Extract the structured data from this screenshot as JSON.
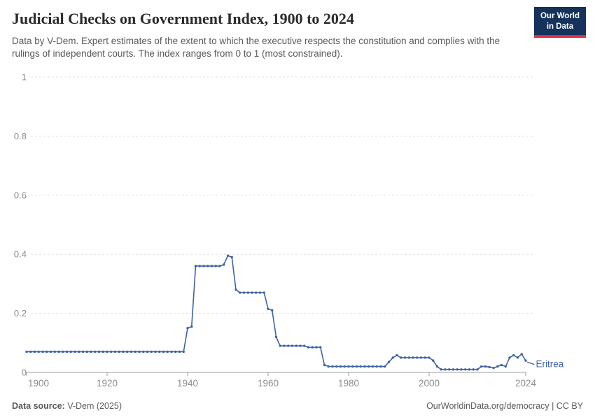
{
  "header": {
    "title": "Judicial Checks on Government Index, 1900 to 2024",
    "subtitle": "Data by V-Dem. Expert estimates of the extent to which the executive respects the constitution and complies with the rulings of independent courts. The index ranges from 0 to 1 (most constrained).",
    "logo": {
      "line1": "Our World",
      "line2": "in Data",
      "bg_color": "#14325c",
      "bar_color": "#dc2e41"
    }
  },
  "chart_data": {
    "type": "line",
    "title": "Judicial Checks on Government Index, 1900 to 2024",
    "entity_label": "Eritrea",
    "x_start": 1900,
    "x_end": 2024,
    "xlim": [
      1900,
      2024
    ],
    "ylim": [
      0,
      1
    ],
    "xticks": [
      1900,
      1920,
      1940,
      1960,
      1980,
      2000,
      2024
    ],
    "yticks": [
      0,
      0.2,
      0.4,
      0.6,
      0.8,
      1
    ],
    "grid": "horizontal-dashed",
    "legend_position": "line-end-label",
    "line_color": "#3f62a7",
    "grid_color": "#e0e0e0",
    "axis_color": "#9e9e9e",
    "tick_label_color": "#8c8c8c",
    "series": [
      {
        "name": "Eritrea",
        "color": "#3f62a7",
        "values": [
          0.07,
          0.07,
          0.07,
          0.07,
          0.07,
          0.07,
          0.07,
          0.07,
          0.07,
          0.07,
          0.07,
          0.07,
          0.07,
          0.07,
          0.07,
          0.07,
          0.07,
          0.07,
          0.07,
          0.07,
          0.07,
          0.07,
          0.07,
          0.07,
          0.07,
          0.07,
          0.07,
          0.07,
          0.07,
          0.07,
          0.07,
          0.07,
          0.07,
          0.07,
          0.07,
          0.07,
          0.07,
          0.07,
          0.07,
          0.07,
          0.15,
          0.155,
          0.36,
          0.36,
          0.36,
          0.36,
          0.36,
          0.36,
          0.36,
          0.365,
          0.395,
          0.39,
          0.28,
          0.27,
          0.27,
          0.27,
          0.27,
          0.27,
          0.27,
          0.27,
          0.215,
          0.21,
          0.12,
          0.09,
          0.09,
          0.09,
          0.09,
          0.09,
          0.09,
          0.09,
          0.085,
          0.085,
          0.085,
          0.085,
          0.025,
          0.02,
          0.02,
          0.02,
          0.02,
          0.02,
          0.02,
          0.02,
          0.02,
          0.02,
          0.02,
          0.02,
          0.02,
          0.02,
          0.02,
          0.02,
          0.035,
          0.05,
          0.058,
          0.05,
          0.05,
          0.05,
          0.05,
          0.05,
          0.05,
          0.05,
          0.05,
          0.04,
          0.02,
          0.01,
          0.01,
          0.01,
          0.01,
          0.01,
          0.01,
          0.01,
          0.01,
          0.01,
          0.01,
          0.02,
          0.02,
          0.018,
          0.015,
          0.02,
          0.025,
          0.02,
          0.05,
          0.058,
          0.05,
          0.062,
          0.04
        ]
      }
    ]
  },
  "footer": {
    "source_label": "Data source:",
    "source_value": "V-Dem (2025)",
    "credit": "OurWorldinData.org/democracy | CC BY"
  }
}
